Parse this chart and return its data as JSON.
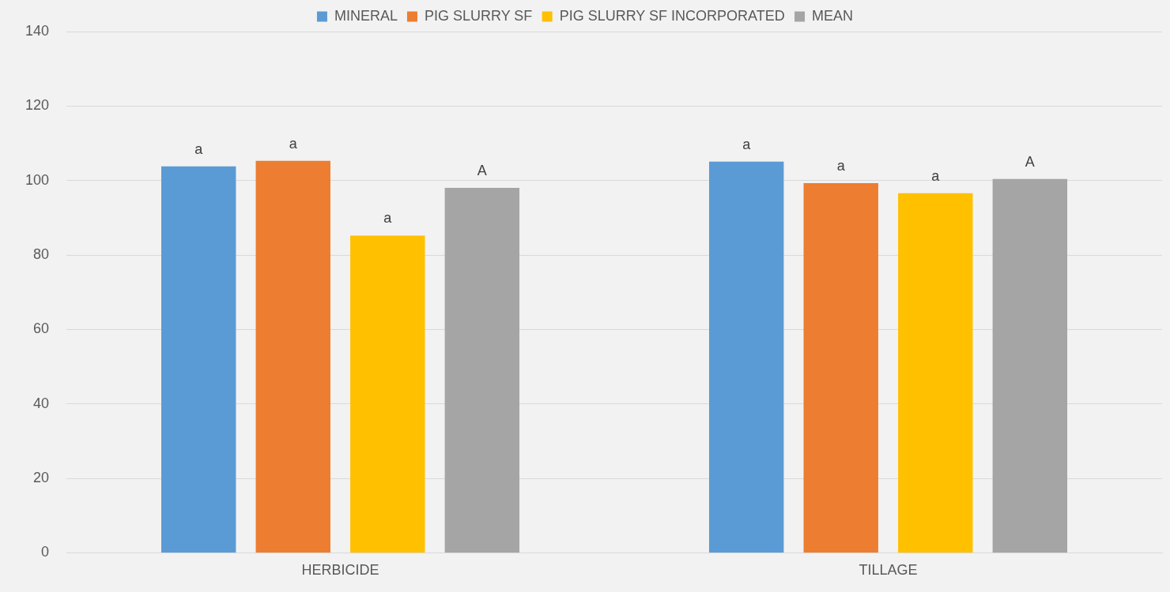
{
  "chart_data": {
    "type": "bar",
    "categories": [
      "HERBICIDE",
      "TILLAGE"
    ],
    "series": [
      {
        "name": "MINERAL",
        "color": "#5b9bd5",
        "values": [
          103.8,
          105.1
        ],
        "value_labels": [
          "a",
          "a"
        ]
      },
      {
        "name": "PIG SLURRY SF",
        "color": "#ed7d31",
        "values": [
          105.3,
          99.3
        ],
        "value_labels": [
          "a",
          "a"
        ]
      },
      {
        "name": "PIG SLURRY SF INCORPORATED",
        "color": "#ffc000",
        "values": [
          85.2,
          96.6
        ],
        "value_labels": [
          "a",
          "a"
        ]
      },
      {
        "name": "MEAN",
        "color": "#a5a5a5",
        "values": [
          98.0,
          100.4
        ],
        "value_labels": [
          "A",
          "A"
        ]
      }
    ],
    "ylim": [
      0,
      140
    ],
    "yticks": [
      0,
      20,
      40,
      60,
      80,
      100,
      120,
      140
    ],
    "grid": "y",
    "legend": "top"
  }
}
